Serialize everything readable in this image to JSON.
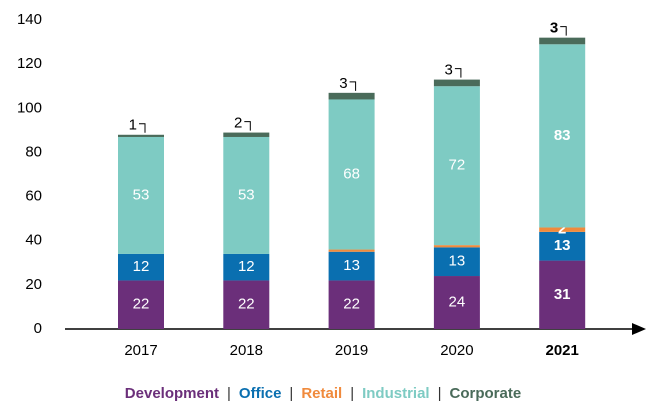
{
  "chart_data": {
    "type": "bar",
    "stacked": true,
    "categories": [
      "2017",
      "2018",
      "2019",
      "2020",
      "2021"
    ],
    "series": [
      {
        "name": "Development",
        "color": "#6b2f7a",
        "values": [
          22,
          22,
          22,
          24,
          31
        ]
      },
      {
        "name": "Office",
        "color": "#0a6fb0",
        "values": [
          12,
          12,
          13,
          13,
          13
        ]
      },
      {
        "name": "Retail",
        "color": "#f08a3c",
        "values": [
          null,
          null,
          1,
          1,
          2
        ]
      },
      {
        "name": "Industrial",
        "color": "#7ecbc3",
        "values": [
          53,
          53,
          68,
          72,
          83
        ]
      },
      {
        "name": "Corporate",
        "color": "#4a6b5a",
        "values": [
          1,
          2,
          3,
          3,
          3
        ]
      }
    ],
    "ylim": [
      0,
      140
    ],
    "yticks": [
      0,
      20,
      40,
      60,
      80,
      100,
      120,
      140
    ],
    "grid": false,
    "legend": "bottom"
  }
}
